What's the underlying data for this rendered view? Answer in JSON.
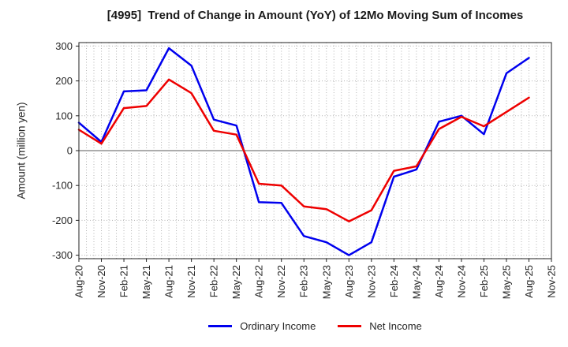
{
  "chart_data": {
    "type": "line",
    "title": "[4995]  Trend of Change in Amount (YoY) of 12Mo Moving Sum of Incomes",
    "ylabel": "Amount (million yen)",
    "x_tick_labels": [
      "Aug-20",
      "Nov-20",
      "Feb-21",
      "May-21",
      "Aug-21",
      "Nov-21",
      "Feb-22",
      "May-22",
      "Aug-22",
      "Nov-22",
      "Feb-23",
      "May-23",
      "Aug-23",
      "Nov-23",
      "Feb-24",
      "May-24",
      "Aug-24",
      "Nov-24",
      "Feb-25",
      "May-25",
      "Aug-25",
      "Nov-25"
    ],
    "minor_x_divisions_per_tick": 3,
    "ylim": [
      -310,
      310
    ],
    "yticks": [
      -300,
      -200,
      -100,
      0,
      100,
      200,
      300
    ],
    "grid": true,
    "zero_line": true,
    "legend_position": "bottom-center",
    "series": [
      {
        "name": "Ordinary Income",
        "color": "#0000ee",
        "values": [
          80,
          25,
          170,
          173,
          294,
          244,
          89,
          72,
          -148,
          -150,
          -245,
          -263,
          -300,
          -263,
          -75,
          -54,
          83,
          100,
          47,
          222,
          266
        ]
      },
      {
        "name": "Net Income",
        "color": "#ee0000",
        "values": [
          60,
          20,
          122,
          128,
          204,
          165,
          57,
          46,
          -95,
          -100,
          -160,
          -168,
          -203,
          -171,
          -58,
          -45,
          62,
          97,
          70,
          111,
          152
        ]
      }
    ]
  }
}
